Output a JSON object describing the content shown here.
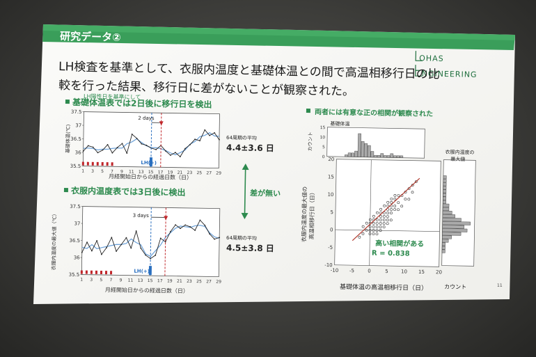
{
  "slide": {
    "header": "研究データ②",
    "logo_line1": "OHAS",
    "logo_line2": "NGINEERING",
    "intro_line1": "LH検査を基準として、衣服内温度と基礎体温との間で高温相移行日の比",
    "intro_line2": "較を行った結果、移行日に差がないことが観察された。",
    "lh_note": "LH陽性日を基準にして",
    "page_number": "11"
  },
  "panel1": {
    "heading": "基礎体温表では2日後に移行日を検出",
    "ylabel": "基礎体温(℃)",
    "xlabel": "月経開始日からの経過日数（日）",
    "days_label": "2 days",
    "lh_label": "LH(+)",
    "avg_label": "64周期の平均",
    "avg_value": "4.4±3.6 日"
  },
  "panel2": {
    "heading": "衣服内温度表では3日後に検出",
    "ylabel": "衣服内温度の最大値（℃）",
    "xlabel": "月経開始日からの経過日数（日）",
    "days_label": "3 days",
    "lh_label": "LH(+)",
    "avg_label": "64周期の平均",
    "avg_value": "4.5±3.8 日"
  },
  "middle": {
    "no_diff": "差が無い"
  },
  "scatter_panel": {
    "heading": "両者には有意な正の相関が観察された",
    "hist_top_title": "基礎体温",
    "hist_top_ylabel": "カウント",
    "hist_right_title_line1": "衣服内温度の",
    "hist_right_title_line2": "最大値",
    "ylabel_line1": "衣服内温度の最大値の",
    "ylabel_line2": "高温相移行日（日）",
    "xlabel": "基礎体温の高温相移行日（日）",
    "xlabel_right": "カウント",
    "corr_line1": "高い相関がある",
    "corr_line2": "R = 0.838"
  },
  "colors": {
    "green_header": "#3a9e5a",
    "green_text": "#2d8a4e",
    "lh_blue": "#2a6fbf",
    "red": "#c0262a",
    "fit_line": "#b03a2e"
  },
  "chart_data": [
    {
      "type": "line",
      "name": "bbt_chart",
      "x": [
        1,
        2,
        3,
        4,
        5,
        6,
        7,
        8,
        9,
        10,
        11,
        12,
        13,
        14,
        15,
        16,
        17,
        18,
        19,
        20,
        21,
        22,
        23,
        24,
        25,
        26,
        27,
        28,
        29
      ],
      "series": [
        {
          "values": [
            36.05,
            36.25,
            36.2,
            36.0,
            36.1,
            36.3,
            36.0,
            36.2,
            36.35,
            36.0,
            36.7,
            36.55,
            36.35,
            36.3,
            36.2,
            36.15,
            36.3,
            36.1,
            35.95,
            36.05,
            35.9,
            36.2,
            36.35,
            36.55,
            36.5,
            36.9,
            36.7,
            36.8,
            36.55
          ]
        }
      ],
      "xticks": [
        1,
        3,
        5,
        7,
        9,
        11,
        13,
        15,
        17,
        19,
        21,
        23,
        25,
        27,
        29
      ],
      "yticks": [
        35.5,
        36,
        36.5,
        37,
        37.5
      ],
      "ylim": [
        35.5,
        37.5
      ],
      "xlim": [
        1,
        29
      ],
      "lh_day": 15,
      "shift_day": 17
    },
    {
      "type": "line",
      "name": "clothing_chart",
      "x": [
        1,
        2,
        3,
        4,
        5,
        6,
        7,
        8,
        9,
        10,
        11,
        12,
        13,
        14,
        15,
        16,
        17,
        18,
        19,
        20,
        21,
        22,
        23,
        24,
        25,
        26,
        27,
        28,
        29
      ],
      "series": [
        {
          "values": [
            36.15,
            36.45,
            36.2,
            36.5,
            36.1,
            36.3,
            36.6,
            36.2,
            36.4,
            36.6,
            36.3,
            36.8,
            36.3,
            36.1,
            36.0,
            36.1,
            36.6,
            36.5,
            36.8,
            37.0,
            36.9,
            37.0,
            36.95,
            36.85,
            37.15,
            37.0,
            36.75,
            36.6,
            36.65
          ]
        }
      ],
      "xticks": [
        1,
        3,
        5,
        7,
        9,
        11,
        13,
        15,
        17,
        19,
        21,
        23,
        25,
        27,
        29
      ],
      "yticks": [
        35.5,
        36,
        36.5,
        37,
        37.5
      ],
      "ylim": [
        35.5,
        37.5
      ],
      "xlim": [
        1,
        29
      ],
      "lh_day": 15,
      "shift_day": 18
    },
    {
      "type": "scatter",
      "name": "correlation_chart",
      "xticks": [
        -10,
        -5,
        0,
        5,
        10,
        15,
        20
      ],
      "yticks": [
        -10,
        -5,
        0,
        5,
        10,
        15,
        20
      ],
      "xlim": [
        -10,
        20
      ],
      "ylim": [
        -10,
        20
      ],
      "points": [
        [
          -3,
          -2
        ],
        [
          -2,
          1
        ],
        [
          -1,
          0
        ],
        [
          0,
          -1
        ],
        [
          0,
          1
        ],
        [
          1,
          0
        ],
        [
          1,
          2
        ],
        [
          2,
          1
        ],
        [
          2,
          3
        ],
        [
          3,
          2
        ],
        [
          3,
          4
        ],
        [
          4,
          3
        ],
        [
          4,
          5
        ],
        [
          5,
          4
        ],
        [
          5,
          6
        ],
        [
          6,
          5
        ],
        [
          6,
          7
        ],
        [
          7,
          6
        ],
        [
          8,
          8
        ],
        [
          9,
          10
        ],
        [
          10,
          9
        ],
        [
          11,
          12
        ],
        [
          12,
          11
        ],
        [
          13,
          14
        ],
        [
          -1,
          2
        ],
        [
          0,
          3
        ],
        [
          1,
          4
        ],
        [
          2,
          5
        ],
        [
          3,
          6
        ],
        [
          4,
          7
        ],
        [
          5,
          8
        ],
        [
          6,
          9
        ],
        [
          7,
          10
        ],
        [
          2,
          -1
        ],
        [
          3,
          0
        ],
        [
          4,
          1
        ],
        [
          1,
          -1
        ],
        [
          0,
          0
        ],
        [
          2,
          2
        ],
        [
          3,
          3
        ],
        [
          4,
          4
        ],
        [
          5,
          5
        ],
        [
          6,
          6
        ],
        [
          7,
          7
        ],
        [
          5,
          2
        ],
        [
          6,
          3
        ],
        [
          3,
          1
        ],
        [
          1,
          1
        ],
        [
          8,
          6
        ],
        [
          9,
          7
        ],
        [
          10,
          11
        ],
        [
          2,
          0
        ],
        [
          4,
          2
        ],
        [
          -2,
          -1
        ],
        [
          0,
          2
        ],
        [
          1,
          3
        ],
        [
          3,
          5
        ],
        [
          5,
          7
        ],
        [
          7,
          9
        ],
        [
          8,
          10
        ],
        [
          11,
          9
        ],
        [
          12,
          13
        ],
        [
          6,
          8
        ],
        [
          5,
          3
        ]
      ],
      "fit_line": [
        [
          -5,
          -3
        ],
        [
          14,
          15
        ]
      ]
    },
    {
      "type": "bar",
      "name": "top_histogram",
      "x": [
        -5,
        -4,
        -3,
        -2,
        -1,
        0,
        1,
        2,
        3,
        4,
        5,
        6,
        7,
        8,
        9,
        10,
        11,
        12,
        13
      ],
      "values": [
        0,
        1,
        2,
        2,
        3,
        12,
        8,
        7,
        6,
        3,
        1,
        1,
        2,
        1,
        1,
        2,
        1,
        1,
        1
      ],
      "yticks": [
        0,
        5,
        10,
        15
      ],
      "ylim": [
        0,
        15
      ]
    },
    {
      "type": "bar",
      "name": "right_histogram",
      "y": [
        -6,
        -5,
        -4,
        -3,
        -2,
        -1,
        0,
        1,
        2,
        3,
        4,
        5,
        6,
        7,
        8,
        9,
        10,
        11,
        12,
        13,
        14,
        15
      ],
      "values": [
        1,
        1,
        1,
        2,
        3,
        6,
        8,
        7,
        9,
        6,
        4,
        3,
        2,
        2,
        1,
        1,
        1,
        1,
        1,
        1,
        1,
        1
      ]
    }
  ]
}
